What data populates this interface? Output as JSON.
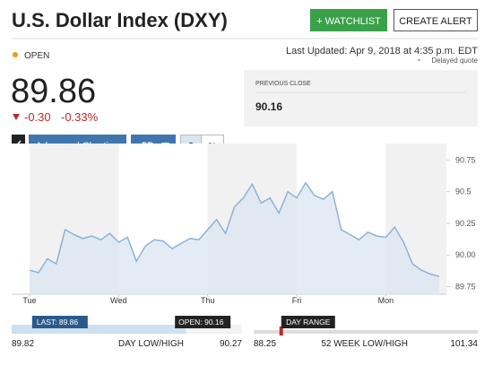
{
  "header": {
    "title": "U.S. Dollar Index (DXY)",
    "watchlist_button": "+ WATCHLIST",
    "alert_button": "CREATE ALERT"
  },
  "status": {
    "market_state": "OPEN",
    "last_updated": "Last Updated: Apr 9, 2018 at 4:35 p.m. EDT",
    "delay_note": "Delayed quote"
  },
  "quote": {
    "price": 89.86,
    "change": "-0.30",
    "change_percent": "-0.33%"
  },
  "previous_close": {
    "label": "PREVIOUS CLOSE",
    "value": 90.16
  },
  "toolbar": {
    "advanced_charting": "Advanced Charting",
    "period": "5D",
    "dollar": "$",
    "percent": "%"
  },
  "chart_data": {
    "type": "line",
    "color": "#8db2d8",
    "fill": "#dce7f1",
    "values": [
      89.88,
      89.86,
      89.97,
      89.93,
      90.2,
      90.16,
      90.13,
      90.15,
      90.12,
      90.17,
      90.1,
      90.14,
      89.95,
      90.07,
      90.12,
      90.11,
      90.05,
      90.09,
      90.13,
      90.12,
      90.2,
      90.28,
      90.17,
      90.38,
      90.45,
      90.56,
      90.41,
      90.45,
      90.33,
      90.5,
      90.45,
      90.57,
      90.47,
      90.44,
      90.5,
      90.2,
      90.16,
      90.12,
      90.18,
      90.15,
      90.14,
      90.22,
      90.1,
      89.93,
      89.88,
      89.85,
      89.83
    ],
    "xlim": [
      0,
      46
    ],
    "xticks": [
      {
        "value": 0,
        "label": "Tue"
      },
      {
        "value": 10,
        "label": "Wed"
      },
      {
        "value": 20,
        "label": "Thu"
      },
      {
        "value": 30,
        "label": "Fri"
      },
      {
        "value": 40,
        "label": "Mon"
      }
    ],
    "ylim": [
      89.69,
      90.88
    ],
    "yticks": [
      89.75,
      {
        "value": 90,
        "label": "90.00"
      },
      90.25,
      90.5,
      90.75
    ]
  },
  "day_range": {
    "last_label": "LAST:",
    "last": 89.86,
    "open_label": "OPEN:",
    "open": 90.16,
    "low": 89.82,
    "high": 90.27,
    "label": "DAY LOW/HIGH"
  },
  "week52_range": {
    "tag": "DAY RANGE",
    "low": 88.25,
    "high": 101.34,
    "label": "52 WEEK LOW/HIGH"
  }
}
